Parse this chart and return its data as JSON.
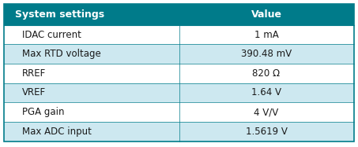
{
  "header": [
    "System settings",
    "Value"
  ],
  "rows": [
    [
      "IDAC current",
      "1 mA"
    ],
    [
      "Max RTD voltage",
      "390.48 mV"
    ],
    [
      "RREF",
      "820 Ω"
    ],
    [
      "VREF",
      "1.64 V"
    ],
    [
      "PGA gain",
      "4 V/V"
    ],
    [
      "Max ADC input",
      "1.5619 V"
    ]
  ],
  "header_bg": "#007B8A",
  "header_text_color": "#ffffff",
  "row_bg_even": "#cde8f0",
  "row_bg_odd": "#ffffff",
  "border_color": "#007B8A",
  "text_color": "#1a1a1a",
  "header_fontsize": 9,
  "row_fontsize": 8.5,
  "col_split": 0.5,
  "fig_w": 4.53,
  "fig_h": 1.87,
  "dpi": 100
}
